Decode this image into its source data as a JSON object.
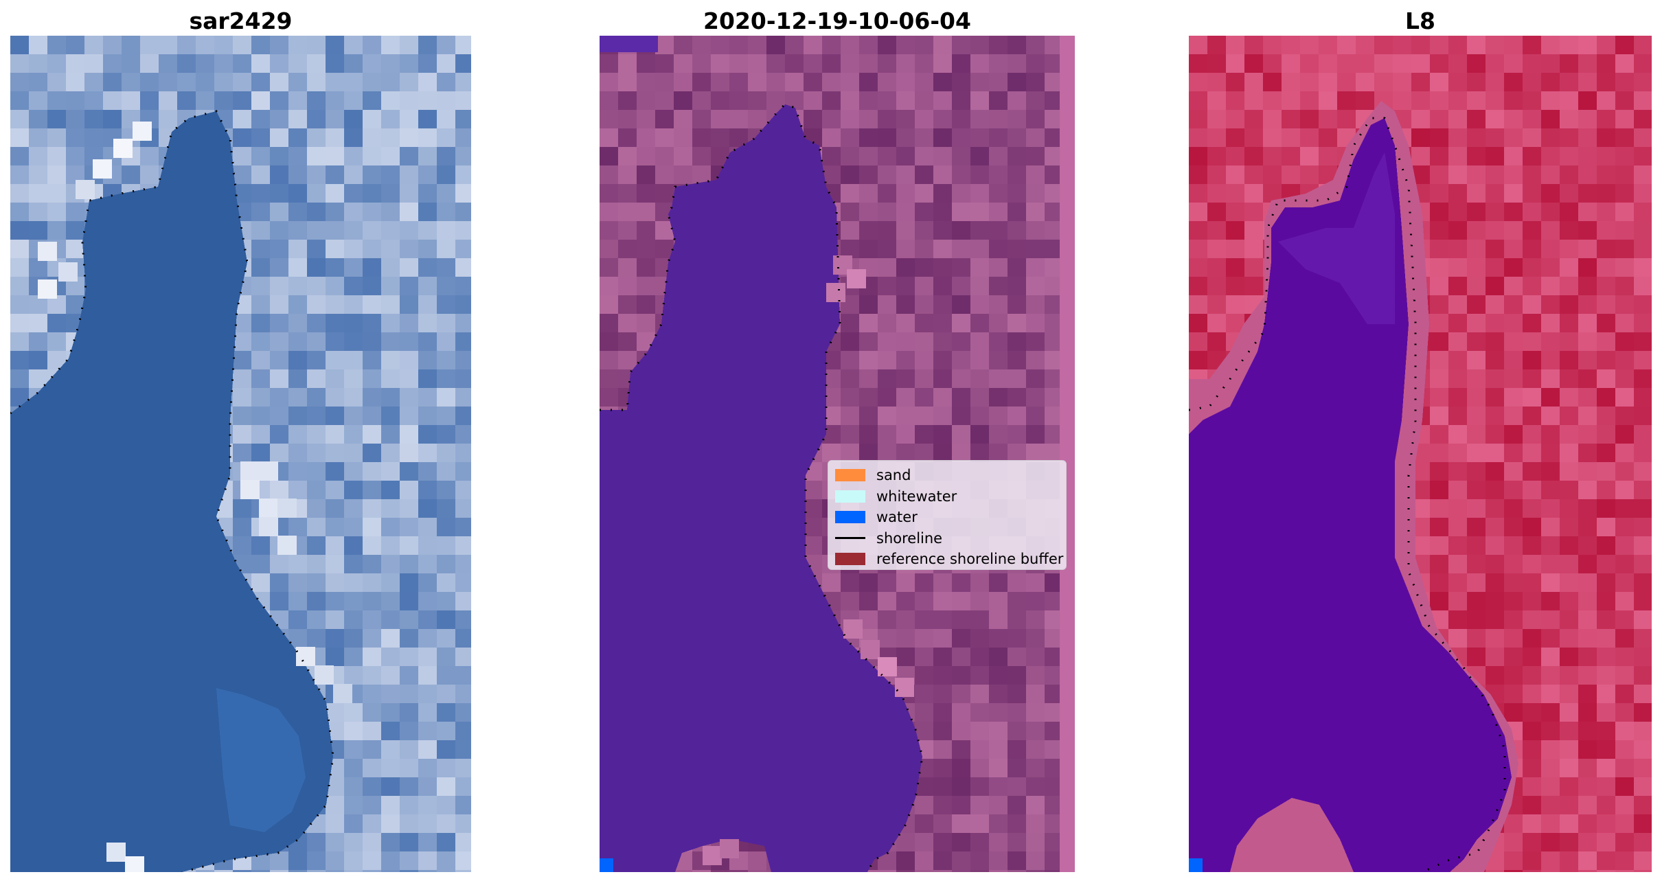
{
  "panels": [
    {
      "title": "sar2429",
      "image": "rgb-satellite-image"
    },
    {
      "title": "2020-12-19-10-06-04",
      "image": "classified-image"
    },
    {
      "title": "L8",
      "image": "false-color-image"
    }
  ],
  "legend": {
    "items": [
      {
        "label": "sand",
        "kind": "patch",
        "color": "#ff8c3c"
      },
      {
        "label": "whitewater",
        "kind": "patch",
        "color": "#c8fafa"
      },
      {
        "label": "water",
        "kind": "patch",
        "color": "#0064ff"
      },
      {
        "label": "shoreline",
        "kind": "line",
        "color": "#000000"
      },
      {
        "label": "reference shoreline buffer",
        "kind": "patch",
        "color": "#9b2a33"
      }
    ]
  },
  "colors": {
    "rgb_water": "#2f5d9e",
    "rgb_land": "#6f93c6",
    "class_water": "#53239a",
    "class_land": "#8a3d7d",
    "class_edge": "#c26aa3",
    "l8_water": "#5b0aa0",
    "l8_land": "#c8264e",
    "pixel_marker": "#0064ff"
  }
}
